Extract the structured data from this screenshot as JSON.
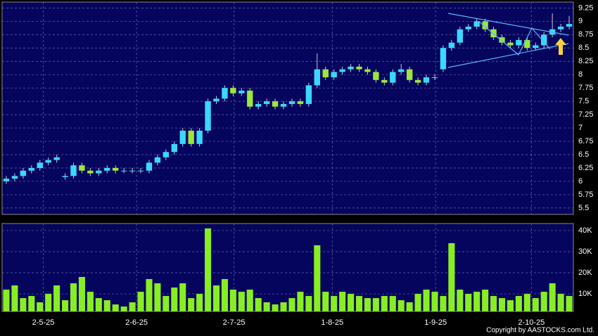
{
  "chart_data": [
    {
      "type": "candlestick",
      "up_color": "#3ad8ff",
      "down_color": "#9be83a",
      "xlim": [
        -0.5,
        67.5
      ],
      "xticks": [
        {
          "value": 4.4,
          "label": "2-5-25"
        },
        {
          "value": 15.5,
          "label": "2-6-25"
        },
        {
          "value": 27.1,
          "label": "2-7-25"
        },
        {
          "value": 38.8,
          "label": "1-8-25"
        },
        {
          "value": 51.1,
          "label": "1-9-25"
        },
        {
          "value": 62.5,
          "label": "2-10-25"
        }
      ],
      "ylim": [
        5.38,
        9.36
      ],
      "yticks": [
        5.5,
        5.75,
        6,
        6.25,
        6.5,
        6.75,
        7,
        7.25,
        7.5,
        7.75,
        8,
        8.25,
        8.5,
        8.75,
        9,
        9.25
      ],
      "grid": true,
      "open": [
        6.0,
        6.05,
        6.1,
        6.2,
        6.25,
        6.35,
        6.4,
        6.08,
        6.1,
        6.3,
        6.2,
        6.15,
        6.2,
        6.25,
        6.2,
        6.2,
        6.2,
        6.2,
        6.35,
        6.45,
        6.55,
        6.7,
        6.95,
        6.7,
        6.95,
        7.5,
        7.55,
        7.75,
        7.65,
        7.7,
        7.4,
        7.45,
        7.5,
        7.4,
        7.45,
        7.5,
        7.45,
        7.8,
        8.1,
        7.95,
        8.05,
        8.1,
        8.15,
        8.1,
        8.05,
        7.9,
        7.85,
        8.05,
        8.1,
        7.9,
        7.85,
        7.95,
        8.1,
        8.5,
        8.6,
        8.85,
        8.9,
        9.0,
        8.85,
        8.7,
        8.6,
        8.55,
        8.65,
        8.5,
        8.55,
        8.75,
        8.85,
        8.9
      ],
      "high": [
        6.1,
        6.15,
        6.25,
        6.3,
        6.4,
        6.45,
        6.5,
        6.15,
        6.35,
        6.35,
        6.25,
        6.25,
        6.3,
        6.3,
        6.25,
        6.25,
        6.25,
        6.4,
        6.5,
        6.6,
        6.75,
        7.0,
        7.0,
        7.0,
        7.55,
        7.6,
        7.8,
        7.8,
        7.75,
        7.75,
        7.5,
        7.55,
        7.55,
        7.5,
        7.55,
        7.55,
        7.85,
        8.4,
        8.15,
        8.1,
        8.15,
        8.2,
        8.2,
        8.15,
        8.1,
        7.95,
        8.1,
        8.2,
        8.15,
        7.95,
        8.0,
        8.0,
        8.55,
        8.65,
        8.9,
        8.95,
        9.05,
        9.05,
        8.9,
        8.75,
        8.65,
        8.7,
        8.7,
        8.6,
        8.8,
        9.15,
        8.95,
        9.1
      ],
      "low": [
        5.95,
        6.0,
        6.05,
        6.15,
        6.2,
        6.3,
        6.35,
        6.03,
        6.05,
        6.15,
        6.1,
        6.1,
        6.15,
        6.15,
        6.15,
        6.15,
        6.15,
        6.15,
        6.3,
        6.4,
        6.5,
        6.65,
        6.65,
        6.65,
        6.9,
        7.45,
        7.5,
        7.6,
        7.6,
        7.35,
        7.35,
        7.4,
        7.35,
        7.35,
        7.4,
        7.4,
        7.4,
        7.75,
        7.9,
        7.9,
        8.0,
        8.05,
        8.05,
        8.0,
        7.85,
        7.8,
        7.8,
        8.0,
        7.85,
        7.8,
        7.8,
        7.9,
        8.05,
        8.45,
        8.55,
        8.8,
        8.85,
        8.8,
        8.65,
        8.55,
        8.5,
        8.5,
        8.45,
        8.45,
        8.5,
        8.7,
        8.8,
        8.85
      ],
      "close": [
        6.05,
        6.1,
        6.2,
        6.25,
        6.35,
        6.4,
        6.45,
        6.1,
        6.3,
        6.2,
        6.15,
        6.2,
        6.25,
        6.2,
        6.2,
        6.2,
        6.2,
        6.35,
        6.45,
        6.55,
        6.7,
        6.95,
        6.7,
        6.95,
        7.5,
        7.55,
        7.75,
        7.65,
        7.7,
        7.4,
        7.45,
        7.5,
        7.4,
        7.45,
        7.5,
        7.45,
        7.8,
        8.1,
        7.95,
        8.05,
        8.1,
        8.15,
        8.1,
        8.05,
        7.9,
        7.85,
        8.05,
        8.1,
        7.9,
        7.85,
        7.95,
        7.95,
        8.5,
        8.6,
        8.85,
        8.9,
        9.0,
        8.85,
        8.7,
        8.6,
        8.55,
        8.65,
        8.5,
        8.55,
        8.75,
        8.85,
        8.9,
        8.95
      ]
    },
    {
      "type": "bar",
      "color": "#88ee22",
      "ylim": [
        1700,
        43300
      ],
      "yticks": [
        {
          "value": 10000,
          "label": "10K"
        },
        {
          "value": 20000,
          "label": "20K"
        },
        {
          "value": 30000,
          "label": "30K"
        },
        {
          "value": 40000,
          "label": "40K"
        }
      ],
      "values": [
        12000,
        14000,
        8000,
        9000,
        6000,
        10000,
        14000,
        7000,
        15000,
        18000,
        11000,
        8000,
        7000,
        5000,
        4000,
        6000,
        11000,
        17000,
        15000,
        9000,
        13000,
        15000,
        8000,
        10000,
        41000,
        14000,
        17000,
        12000,
        11000,
        12000,
        8000,
        6000,
        5000,
        6000,
        8000,
        11000,
        9000,
        33000,
        11000,
        9000,
        11000,
        10000,
        9000,
        8000,
        8000,
        9000,
        9000,
        7000,
        6000,
        10000,
        12000,
        11000,
        9000,
        34000,
        12000,
        10000,
        11000,
        12000,
        9000,
        8000,
        7000,
        9000,
        10000,
        8000,
        11000,
        15000,
        10000,
        9000
      ]
    }
  ],
  "copyright": "Copyright by AASTOCKS.com Ltd."
}
